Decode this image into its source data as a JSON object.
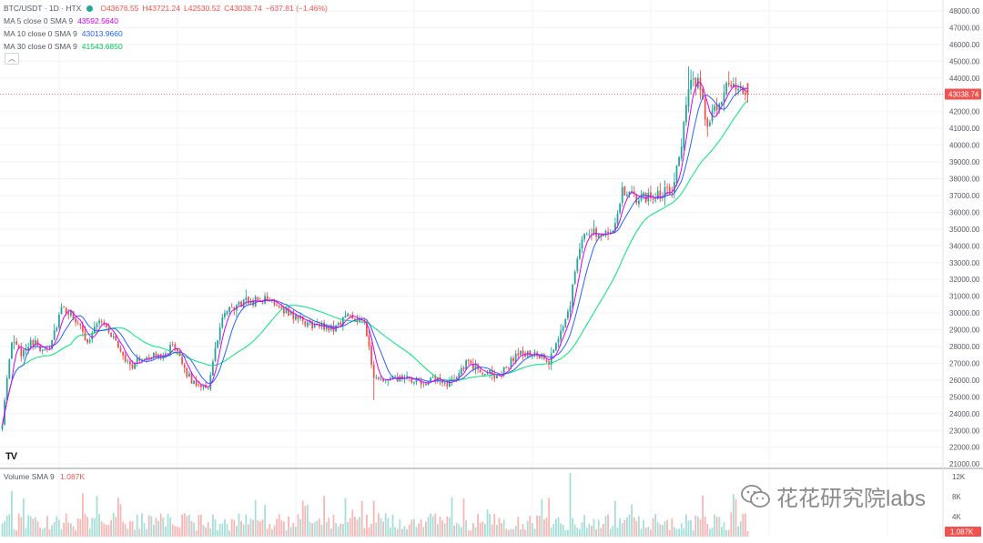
{
  "header": {
    "symbol": "BTC/USDT · 1D · HTX",
    "open": "O43676.55",
    "high": "H43721.24",
    "low": "L42530.52",
    "close": "C43038.74",
    "change": "−637.81 (−1.46%)"
  },
  "indicators": [
    {
      "label": "MA 5 close 0 SMA 9",
      "value": "43592.5640",
      "color": "#d500f9"
    },
    {
      "label": "MA 10 close 0 SMA 9",
      "value": "43013.9660",
      "color": "#2962ff"
    },
    {
      "label": "MA 30 close 0 SMA 9",
      "value": "41543.6850",
      "color": "#00e676"
    }
  ],
  "collapse_icon": "chevron-up-icon",
  "tv_logo": "TV",
  "price_axis": {
    "ticks": [
      "48000.00",
      "47000.00",
      "46000.00",
      "45000.00",
      "44000.00",
      "43000.00",
      "42000.00",
      "41000.00",
      "40000.00",
      "39000.00",
      "38000.00",
      "37000.00",
      "36000.00",
      "35000.00",
      "34000.00",
      "33000.00",
      "32000.00",
      "31000.00",
      "30000.00",
      "29000.00",
      "28000.00",
      "27000.00",
      "26000.00",
      "25000.00",
      "24000.00",
      "23000.00",
      "22000.00",
      "21000.00"
    ],
    "last_price": "43038.74"
  },
  "volume": {
    "label": "Volume SMA 9",
    "value": "1.087K",
    "ticks": [
      "12K",
      "8K",
      "4K"
    ],
    "last_label": "1.087K"
  },
  "watermark": "花花研究院labs",
  "colors": {
    "up": "#26a69a",
    "down": "#ef5350",
    "ma5": "#d500f9",
    "ma10": "#2962ff",
    "ma30": "#00e676"
  },
  "chart_data": {
    "type": "candlestick",
    "title": "BTC/USDT · 1D · HTX",
    "ylim": [
      21000,
      48000
    ],
    "grid": true,
    "anchors": [
      [
        0,
        23500
      ],
      [
        4,
        28300
      ],
      [
        8,
        27600
      ],
      [
        12,
        28400
      ],
      [
        16,
        27900
      ],
      [
        20,
        28000
      ],
      [
        25,
        30200
      ],
      [
        30,
        29800
      ],
      [
        36,
        28300
      ],
      [
        41,
        29700
      ],
      [
        47,
        28500
      ],
      [
        54,
        26800
      ],
      [
        60,
        27400
      ],
      [
        66,
        27400
      ],
      [
        72,
        28000
      ],
      [
        80,
        25900
      ],
      [
        87,
        25600
      ],
      [
        93,
        29800
      ],
      [
        101,
        30600
      ],
      [
        109,
        30800
      ],
      [
        115,
        30700
      ],
      [
        121,
        30000
      ],
      [
        127,
        29500
      ],
      [
        133,
        29200
      ],
      [
        140,
        29100
      ],
      [
        146,
        29900
      ],
      [
        153,
        29600
      ],
      [
        157,
        26000
      ],
      [
        163,
        26000
      ],
      [
        170,
        26100
      ],
      [
        176,
        25800
      ],
      [
        182,
        26000
      ],
      [
        189,
        25800
      ],
      [
        196,
        27000
      ],
      [
        203,
        26500
      ],
      [
        210,
        26200
      ],
      [
        217,
        27500
      ],
      [
        224,
        27600
      ],
      [
        231,
        27000
      ],
      [
        236,
        28800
      ],
      [
        240,
        30600
      ],
      [
        243,
        33500
      ],
      [
        247,
        34800
      ],
      [
        253,
        34800
      ],
      [
        258,
        35000
      ],
      [
        262,
        37200
      ],
      [
        268,
        36800
      ],
      [
        276,
        37000
      ],
      [
        283,
        37400
      ],
      [
        287,
        40200
      ],
      [
        290,
        43500
      ],
      [
        294,
        43700
      ],
      [
        298,
        41200
      ],
      [
        303,
        42500
      ],
      [
        307,
        43900
      ],
      [
        311,
        43200
      ],
      [
        315,
        43040
      ]
    ],
    "ma5_last": 43592.564,
    "ma10_last": 43013.966,
    "ma30_last": 41543.685,
    "volume_ylim": [
      0,
      13500
    ]
  }
}
